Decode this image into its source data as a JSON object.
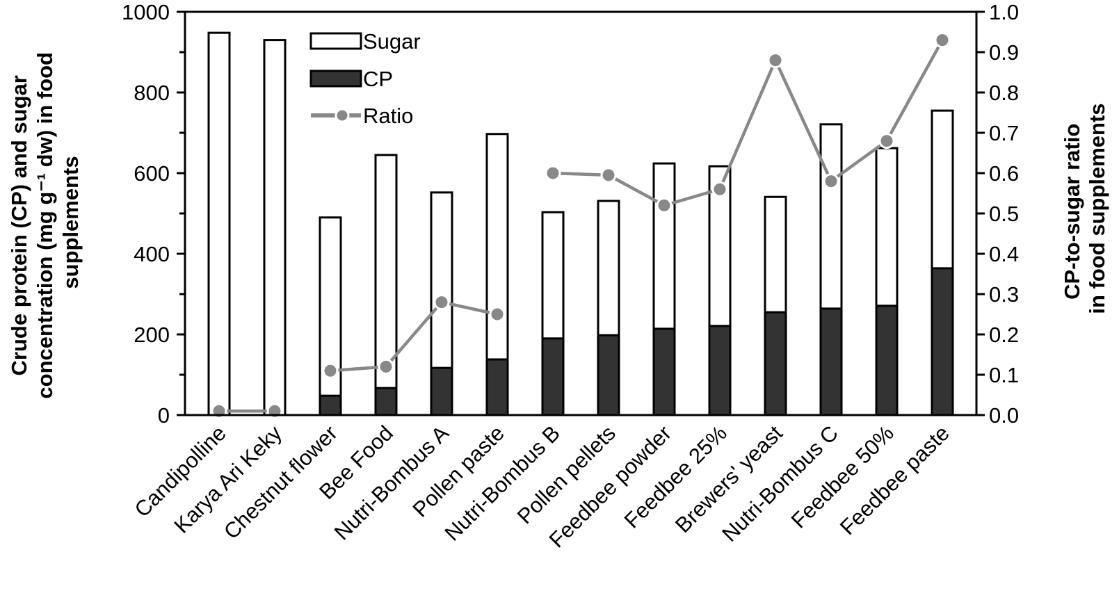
{
  "chart_data": {
    "type": "bar",
    "subtype": "stacked-bar-with-line-secondary-axis",
    "categories": [
      "Candipolline",
      "Karya Ari Keky",
      "Chestnut flower",
      "Bee Food",
      "Nutri-Bombus A",
      "Pollen paste",
      "Nutri-Bombus B",
      "Pollen pellets",
      "Feedbee powder",
      "Feedbee 25%",
      "Brewers' yeast",
      "Nutri-Bombus C",
      "Feedbee 50%",
      "Feedbee paste"
    ],
    "series": [
      {
        "name": "CP",
        "kind": "bar",
        "axis": "left",
        "color": "#333333",
        "values": [
          0,
          0,
          48,
          67,
          117,
          138,
          190,
          198,
          214,
          221,
          255,
          264,
          271,
          364
        ]
      },
      {
        "name": "Sugar",
        "kind": "bar",
        "axis": "left",
        "color": "#ffffff",
        "total_values": [
          948,
          930,
          490,
          645,
          552,
          697,
          503,
          531,
          624,
          617,
          541,
          721,
          662,
          755
        ]
      },
      {
        "name": "Ratio",
        "kind": "line",
        "axis": "right",
        "color": "#888888",
        "values": [
          0.01,
          0.01,
          0.11,
          0.12,
          0.28,
          0.25,
          0.6,
          0.595,
          0.52,
          0.56,
          0.88,
          0.58,
          0.68,
          0.93
        ]
      }
    ],
    "note": "Sugar bar height shown as total (CP + Sugar) stacked height",
    "ylabel_lines": [
      "Crude protein (CP) and sugar",
      "concentration (mg g⁻¹ dw) in food",
      "supplements"
    ],
    "y2label_lines": [
      "CP-to-sugar ratio",
      "in food supplements"
    ],
    "xlabel": "",
    "ylim": [
      0,
      1000
    ],
    "y_ticks": [
      "0",
      "200",
      "400",
      "600",
      "800",
      "1000"
    ],
    "y2lim": [
      0,
      1.0
    ],
    "y2_ticks": [
      "0.0",
      "0.1",
      "0.2",
      "0.3",
      "0.4",
      "0.5",
      "0.6",
      "0.7",
      "0.8",
      "0.9",
      "1.0"
    ],
    "legend": {
      "position": "top-left-inside",
      "entries": [
        "Sugar",
        "CP",
        "Ratio"
      ]
    },
    "grid": false
  }
}
